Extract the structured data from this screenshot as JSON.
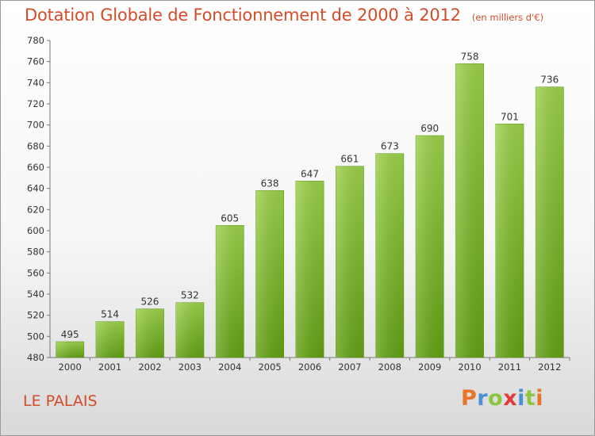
{
  "chart_data": {
    "type": "bar",
    "title": "Dotation Globale de Fonctionnement de 2000 à 2012",
    "subtitle": "(en milliers d'€)",
    "categories": [
      "2000",
      "2001",
      "2002",
      "2003",
      "2004",
      "2005",
      "2006",
      "2007",
      "2008",
      "2009",
      "2010",
      "2011",
      "2012"
    ],
    "values": [
      495,
      514,
      526,
      532,
      605,
      638,
      647,
      661,
      673,
      690,
      758,
      701,
      736
    ],
    "ylim": [
      480,
      780
    ],
    "yticks": [
      480,
      500,
      520,
      540,
      560,
      580,
      600,
      620,
      640,
      660,
      680,
      700,
      720,
      740,
      760,
      780
    ],
    "grid": false,
    "bar_color": "#7ab82e"
  },
  "footer": {
    "commune": "LE PALAIS",
    "brand_letters": [
      {
        "ch": "P",
        "color": "#e8732a"
      },
      {
        "ch": "r",
        "color": "#4a8fd0"
      },
      {
        "ch": "o",
        "color": "#8cc63f"
      },
      {
        "ch": "x",
        "color": "#e03c3c"
      },
      {
        "ch": "i",
        "color": "#4a8fd0"
      },
      {
        "ch": "t",
        "color": "#8cc63f"
      },
      {
        "ch": "i",
        "color": "#e8732a"
      }
    ]
  }
}
